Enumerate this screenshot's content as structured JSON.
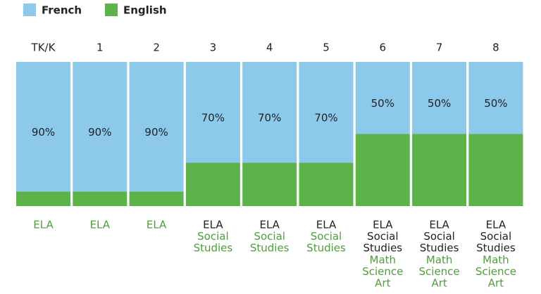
{
  "chart_data": {
    "type": "stacked_bar",
    "categories": [
      "TK/K",
      "1",
      "2",
      "3",
      "4",
      "5",
      "6",
      "7",
      "8"
    ],
    "series": [
      {
        "name": "English",
        "color": "#5cb34a",
        "values": [
          10,
          10,
          10,
          30,
          30,
          30,
          50,
          50,
          50
        ]
      },
      {
        "name": "French",
        "color": "#8cc9ea",
        "values": [
          90,
          90,
          90,
          70,
          70,
          70,
          50,
          50,
          50
        ],
        "value_labels": [
          "90%",
          "90%",
          "90%",
          "70%",
          "70%",
          "70%",
          "50%",
          "50%",
          "50%"
        ]
      }
    ],
    "legend_order": [
      "French",
      "English"
    ],
    "ylim": [
      0,
      100
    ],
    "subjects": [
      [
        {
          "lines": [
            "ELA"
          ],
          "color": "#4e9e3c"
        }
      ],
      [
        {
          "lines": [
            "ELA"
          ],
          "color": "#4e9e3c"
        }
      ],
      [
        {
          "lines": [
            "ELA"
          ],
          "color": "#4e9e3c"
        }
      ],
      [
        {
          "lines": [
            "ELA"
          ],
          "color": "#222222"
        },
        {
          "lines": [
            "Social",
            "Studies"
          ],
          "color": "#4e9e3c"
        }
      ],
      [
        {
          "lines": [
            "ELA"
          ],
          "color": "#222222"
        },
        {
          "lines": [
            "Social",
            "Studies"
          ],
          "color": "#4e9e3c"
        }
      ],
      [
        {
          "lines": [
            "ELA"
          ],
          "color": "#222222"
        },
        {
          "lines": [
            "Social",
            "Studies"
          ],
          "color": "#4e9e3c"
        }
      ],
      [
        {
          "lines": [
            "ELA"
          ],
          "color": "#222222"
        },
        {
          "lines": [
            "Social",
            "Studies"
          ],
          "color": "#222222"
        },
        {
          "lines": [
            "Math",
            "Science",
            "Art"
          ],
          "color": "#4e9e3c"
        }
      ],
      [
        {
          "lines": [
            "ELA"
          ],
          "color": "#222222"
        },
        {
          "lines": [
            "Social",
            "Studies"
          ],
          "color": "#222222"
        },
        {
          "lines": [
            "Math",
            "Science",
            "Art"
          ],
          "color": "#4e9e3c"
        }
      ],
      [
        {
          "lines": [
            "ELA"
          ],
          "color": "#222222"
        },
        {
          "lines": [
            "Social",
            "Studies"
          ],
          "color": "#222222"
        },
        {
          "lines": [
            "Math",
            "Science",
            "Art"
          ],
          "color": "#4e9e3c"
        }
      ]
    ]
  }
}
